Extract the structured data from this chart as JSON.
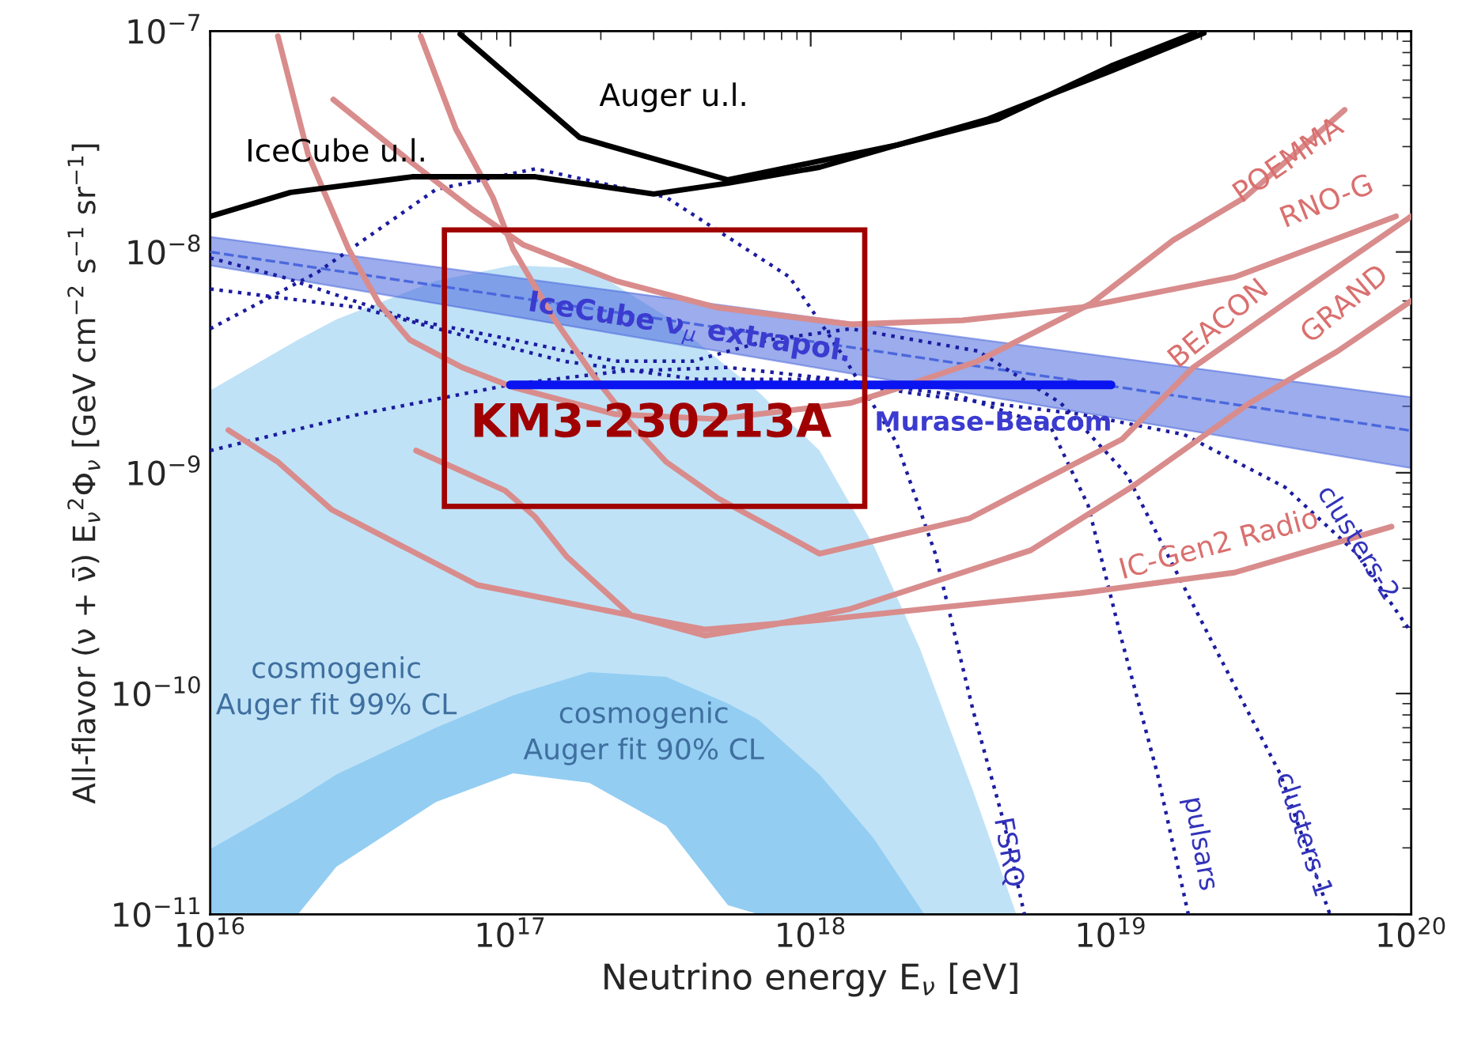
{
  "chart_data": {
    "type": "line",
    "xlabel": "Neutrino energy E$_{ν}$ [eV]",
    "ylabel": "All-flavor (ν + ν̄) E$_{ν}$$^{2}$Φ$_{ν}$ [GeV cm$^{−2}$ s$^{−1}$ sr$^{−1}$]",
    "log": "xy",
    "grid": false,
    "legend": false,
    "xlim": [
      1e+16,
      1e+20
    ],
    "ylim": [
      1e-11,
      1e-07
    ],
    "xticks": [
      {
        "value": 1e+16,
        "label": "10$^{16}$"
      },
      {
        "value": 1e+17,
        "label": "10$^{17}$"
      },
      {
        "value": 1e+18,
        "label": "10$^{18}$"
      },
      {
        "value": 1e+19,
        "label": "10$^{19}$"
      },
      {
        "value": 1e+20,
        "label": "10$^{20}$"
      }
    ],
    "yticks": [
      {
        "value": 1e-11,
        "label": "10$^{−11}$"
      },
      {
        "value": 1e-10,
        "label": "10$^{−10}$"
      },
      {
        "value": 1e-09,
        "label": "10$^{−9}$"
      },
      {
        "value": 1e-08,
        "label": "10$^{−8}$"
      },
      {
        "value": 1e-07,
        "label": "10$^{−7}$"
      }
    ],
    "series": [
      {
        "type": "area",
        "name": "cosmogenic\nAuger fit 99% CL",
        "color": "#bfe2f7",
        "x": [
          1e+16,
          1.96e+16,
          2.63e+16,
          5.65e+16,
          1.02e+17,
          1.83e+17,
          3.3e+17,
          5.3e+17,
          6.7e+17,
          1.07e+18,
          1.62e+18,
          2.31e+18,
          3.48e+18,
          4.84e+18
        ],
        "values": [
          2.36e-09,
          4e-09,
          4.95e-09,
          7.4e-09,
          8.7e-09,
          8.4e-09,
          5.1e-09,
          3e-09,
          2.32e-09,
          1.26e-09,
          4.7e-10,
          1.6e-10,
          3.6e-11,
          1e-11
        ]
      },
      {
        "type": "area",
        "name": "cosmogenic\nAuger fit 90% CL",
        "color": "#93cdf2",
        "x": [
          1e+16,
          1.96e+16,
          2.63e+16,
          5.65e+16,
          1.02e+17,
          1.83e+17,
          3.3e+17,
          5.3e+17,
          6.7e+17,
          1.07e+18,
          1.62e+18,
          2.39e+18
        ],
        "values": [
          1.97e-11,
          3.33e-11,
          4.3e-11,
          7e-11,
          9.8e-11,
          1.25e-10,
          1.19e-10,
          9e-11,
          7.6e-11,
          4.3e-11,
          2.21e-11,
          1e-11
        ]
      },
      {
        "type": "area",
        "color": "#ffffff",
        "x": [
          1.96e+16,
          2.63e+16,
          5.65e+16,
          1.02e+17,
          1.83e+17,
          3.3e+17,
          5.3e+17,
          6.7e+17
        ],
        "values": [
          1e-11,
          1.64e-11,
          3.23e-11,
          4.35e-11,
          3.94e-11,
          2.52e-11,
          1.1e-11,
          1e-11
        ]
      },
      {
        "type": "line",
        "name": "IceCube ν$_{μ}$ extrapol.",
        "color": "#4a67dd",
        "line_style": "dashed",
        "x": [
          1e+16,
          1e+20
        ],
        "values": [
          1e-08,
          1.55e-09
        ],
        "lower": [
          8.7e-09,
          1.05e-09
        ],
        "upper": [
          1.17e-08,
          2.2e-09
        ]
      },
      {
        "type": "line",
        "name": "FSRQ",
        "color": "#1c1ca0",
        "line_style": "dotted",
        "x": [
          1e+16,
          2.28e+16,
          5.65e+16,
          1.21e+17,
          3.3e+17,
          8.5e+17,
          1.28e+18,
          1.93e+18,
          2.6e+18,
          3.48e+18,
          4.4e+18,
          5.15e+18
        ],
        "values": [
          4.49e-09,
          8.1e-09,
          1.92e-08,
          2.38e-08,
          1.77e-08,
          7.7e-09,
          3.39e-09,
          1.37e-09,
          4.3e-10,
          8.3e-11,
          2.6e-11,
          1e-11
        ]
      },
      {
        "type": "line",
        "name": "pulsars",
        "color": "#1c1ca0",
        "line_style": "dotted",
        "x": [
          1e+16,
          3.13e+16,
          1.02e+17,
          2.32e+17,
          5.3e+17,
          1.21e+18,
          3.1e+18,
          6.3e+18,
          8.4e+18,
          1.07e+19,
          1.43e+19,
          1.81e+19
        ],
        "values": [
          1.26e-09,
          1.84e-09,
          2.52e-09,
          2.88e-09,
          3e-09,
          2.65e-09,
          2.24e-09,
          1.61e-09,
          7.1e-10,
          1.89e-10,
          4.3e-11,
          1e-11
        ]
      },
      {
        "type": "line",
        "name": "clusters-1",
        "color": "#1c1ca0",
        "line_style": "dotted",
        "x": [
          1e+16,
          1.74e+16,
          4.62e+16,
          1.02e+17,
          2.24e+17,
          4.04e+17,
          7.3e+17,
          1.36e+18,
          3.6e+18,
          6.8e+18,
          1.13e+19,
          2.3e+19,
          3.67e+19,
          5.36e+19
        ],
        "values": [
          9.4e-09,
          7.7e-09,
          4.95e-09,
          4e-09,
          3.2e-09,
          3.2e-09,
          4e-09,
          4.49e-09,
          3.56e-09,
          2.07e-09,
          9.8e-10,
          1.47e-10,
          4.3e-11,
          1e-11
        ]
      },
      {
        "type": "line",
        "name": "clusters-2",
        "color": "#1c1ca0",
        "line_style": "dotted",
        "x": [
          1e+16,
          3.13e+16,
          6.9e+16,
          1.5e+17,
          4.18e+17,
          1.07e+18,
          2.45e+18,
          7.9e+18,
          1.75e+19,
          3.8e+19,
          6.6e+19,
          1e+20
        ],
        "values": [
          6.8e-09,
          5.6e-09,
          4.2e-09,
          3.2e-09,
          2.65e-09,
          2.65e-09,
          2.24e-09,
          1.84e-09,
          1.49e-09,
          8.6e-10,
          4.3e-10,
          1.89e-10
        ]
      },
      {
        "type": "line",
        "name": "POEMMA",
        "color": "#d98c8c",
        "line_style": "solid",
        "x": [
          1.68e+16,
          2.12e+16,
          2.89e+16,
          3.65e+16,
          4.62e+16,
          6.9e+16,
          1.02e+17,
          2.24e+17,
          4.88e+17,
          1.36e+18,
          2e+18,
          3.6e+18,
          8.6e+18,
          1.61e+19,
          2.8e+19,
          6e+19
        ],
        "values": [
          9.5e-08,
          2.76e-08,
          1.03e-08,
          5.85e-09,
          4e-09,
          3e-09,
          2.44e-09,
          1.84e-09,
          1.75e-09,
          2.07e-09,
          2.44e-09,
          3.2e-09,
          5.85e-09,
          1.13e-08,
          1.77e-08,
          4.4e-08
        ]
      },
      {
        "type": "line",
        "name": "RNO-G",
        "color": "#d98c8c",
        "line_style": "solid",
        "x": [
          2.57e+16,
          4.62e+16,
          7.4e+16,
          1.1e+17,
          2.24e+17,
          4.88e+17,
          1.36e+18,
          3.2e+18,
          7.9e+18,
          2.58e+19,
          8.9e+19
        ],
        "values": [
          4.9e-08,
          2.58e-08,
          1.57e-08,
          1.08e-08,
          7.4e-09,
          5.6e-09,
          4.7e-09,
          4.9e-09,
          5.6e-09,
          7.7e-09,
          1.45e-08
        ]
      },
      {
        "type": "line",
        "name": "BEACON",
        "color": "#d98c8c",
        "line_style": "solid",
        "x": [
          5.02e+16,
          6.58e+16,
          8.73e+16,
          1.02e+17,
          1.4e+17,
          1.9e+17,
          2.52e+17,
          3.3e+17,
          4.88e+17,
          1.07e+18,
          3.37e+18,
          1.09e+19,
          1.88e+19,
          3.8e+19,
          1e+20
        ],
        "values": [
          9.5e-08,
          3.6e-08,
          1.77e-08,
          1.03e-08,
          4.95e-09,
          2.73e-09,
          1.67e-09,
          1.12e-09,
          7.7e-10,
          4.3e-10,
          6.2e-10,
          1.42e-09,
          3e-09,
          5.85e-09,
          1.45e-08
        ]
      },
      {
        "type": "line",
        "name": "GRAND",
        "color": "#d98c8c",
        "line_style": "solid",
        "x": [
          1.15e+16,
          1.68e+16,
          2.54e+16,
          7.76e+16,
          2.52e+17,
          4.44e+17,
          7.5e+17,
          1.36e+18,
          5.4e+18,
          1.17e+19,
          2.9e+19,
          5.7e+19,
          1e+20
        ],
        "values": [
          1.56e-09,
          1.12e-09,
          6.8e-10,
          3.1e-10,
          2.26e-10,
          1.83e-10,
          2.05e-10,
          2.42e-10,
          4.45e-10,
          8.6e-10,
          2.07e-09,
          3.56e-09,
          6e-09
        ]
      },
      {
        "type": "line",
        "name": "IC-Gen2 Radio",
        "color": "#d98c8c",
        "line_style": "solid",
        "x": [
          4.85e+16,
          9.6e+16,
          1.21e+17,
          1.54e+17,
          2.52e+17,
          4.44e+17,
          1.07e+18,
          2.45e+18,
          7.9e+18,
          2.58e+19,
          8.6e+19
        ],
        "values": [
          1.26e-09,
          8.3e-10,
          6.3e-10,
          4.17e-10,
          2.26e-10,
          1.95e-10,
          2.15e-10,
          2.42e-10,
          2.85e-10,
          3.53e-10,
          5.7e-10
        ]
      },
      {
        "type": "line",
        "name": "IceCube u.l.",
        "color": "#000000",
        "line_style": "solid",
        "x": [
          1e+16,
          1.85e+16,
          4.7e+16,
          1.21e+17,
          3e+17,
          5.3e+17,
          1.07e+18,
          3.9e+18,
          1e+19,
          2.04e+19
        ],
        "values": [
          1.45e-08,
          1.86e-08,
          2.19e-08,
          2.19e-08,
          1.83e-08,
          2.05e-08,
          2.42e-08,
          4e-08,
          6.6e-08,
          9.8e-08
        ]
      },
      {
        "type": "line",
        "name": "Auger u.l.",
        "color": "#000000",
        "line_style": "solid",
        "x": [
          6.8e+16,
          1.7e+17,
          5.3e+17,
          1.94e+18,
          4.2e+18,
          1e+19,
          1.9e+19
        ],
        "values": [
          9.7e-08,
          3.3e-08,
          2.12e-08,
          3.05e-08,
          4e-08,
          6.95e-08,
          9.8e-08
        ]
      },
      {
        "name": "Murase-Beacom",
        "color": "#0a14f0",
        "line_style": "solid",
        "x": [
          1e+17,
          1e+19
        ],
        "values": [
          2.5e-09,
          2.5e-09
        ]
      }
    ],
    "annotations": [
      "KM3-230213A"
    ]
  }
}
